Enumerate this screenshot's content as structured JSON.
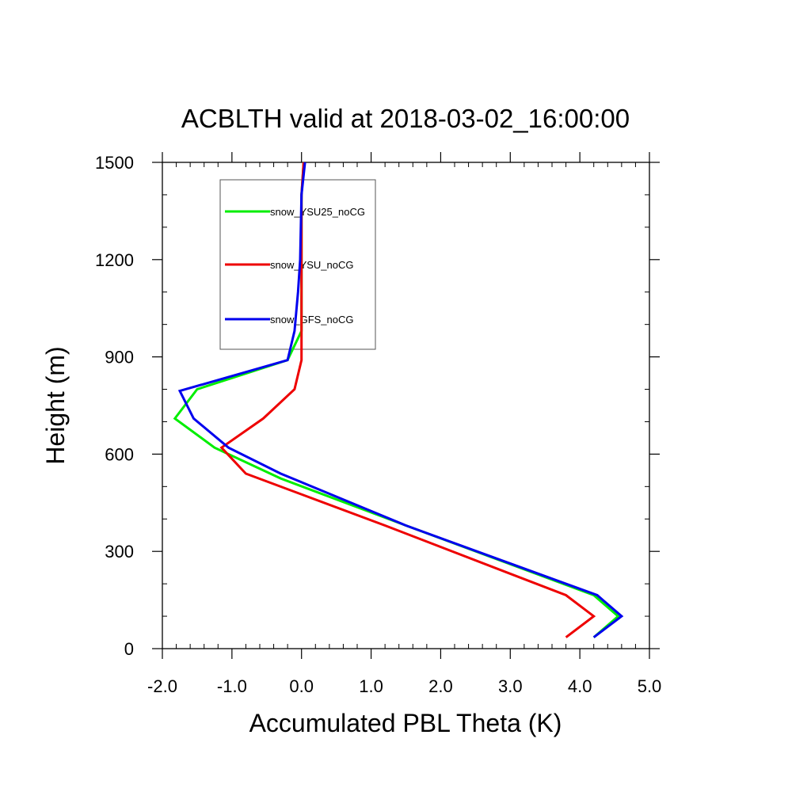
{
  "chart_data": {
    "type": "line",
    "title": "ACBLTH valid at 2018-03-02_16:00:00",
    "xlabel": "Accumulated PBL Theta (K)",
    "ylabel": "Height (m)",
    "xlim": [
      -2.0,
      5.0
    ],
    "ylim": [
      0,
      1500
    ],
    "xticks": [
      -2.0,
      -1.0,
      0.0,
      1.0,
      2.0,
      3.0,
      4.0,
      5.0
    ],
    "xtick_labels": [
      "-2.0",
      "-1.0",
      "0.0",
      "1.0",
      "2.0",
      "3.0",
      "4.0",
      "5.0"
    ],
    "yticks": [
      0,
      300,
      600,
      900,
      1200,
      1500
    ],
    "ytick_labels": [
      "0",
      "300",
      "600",
      "900",
      "1200",
      "1500"
    ],
    "grid": false,
    "legend_placement": "top-left",
    "series": [
      {
        "name": "snow_YSU25_noCG",
        "color": "#00ee00",
        "x": [
          4.2,
          4.55,
          4.2,
          1.5,
          -0.3,
          -1.25,
          -1.82,
          -1.5,
          -0.2,
          0.0,
          0.0,
          0.0,
          0.0,
          0.03
        ],
        "y": [
          35,
          100,
          165,
          380,
          525,
          620,
          710,
          800,
          890,
          980,
          1100,
          1200,
          1400,
          1500
        ]
      },
      {
        "name": "snow_YSU_noCG",
        "color": "#ee0000",
        "x": [
          3.8,
          4.2,
          3.8,
          1.2,
          -0.8,
          -1.15,
          -0.55,
          -0.1,
          0.0,
          0.0,
          0.0,
          0.0,
          0.0,
          0.03
        ],
        "y": [
          35,
          100,
          165,
          380,
          540,
          620,
          710,
          800,
          890,
          980,
          1100,
          1200,
          1400,
          1500
        ]
      },
      {
        "name": "snow_GFS_noCG",
        "color": "#0000ee",
        "x": [
          4.2,
          4.6,
          4.25,
          1.5,
          -0.3,
          -1.05,
          -1.55,
          -1.75,
          -0.2,
          -0.1,
          -0.05,
          -0.02,
          0.0,
          0.05
        ],
        "y": [
          35,
          100,
          165,
          380,
          540,
          620,
          710,
          795,
          890,
          980,
          1100,
          1200,
          1400,
          1500
        ]
      }
    ]
  }
}
